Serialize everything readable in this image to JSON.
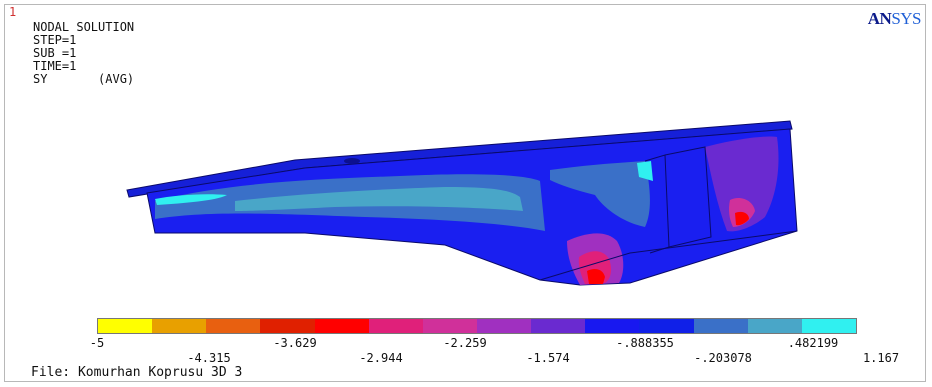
{
  "window_number": "1",
  "title": "NODAL SOLUTION",
  "info_lines": [
    "STEP=1",
    "SUB =1",
    "TIME=1",
    "SY       (AVG)"
  ],
  "logo": {
    "an": "AN",
    "sys": "SYS"
  },
  "legend": {
    "colors": [
      "#ffff00",
      "#e8a000",
      "#e86010",
      "#e02000",
      "#ff0000",
      "#e0207a",
      "#d0309a",
      "#a030c0",
      "#6a2ad0",
      "#1818f0",
      "#1020e8",
      "#3a70c8",
      "#49a6c8",
      "#30f0f0"
    ],
    "labels_top": [
      "-5",
      "-3.629",
      "-2.259",
      "-.888355",
      ".482199"
    ],
    "labels_bottom": [
      "-4.315",
      "-2.944",
      "-1.574",
      "-.203078",
      "1.167"
    ]
  },
  "file_line": "File: Komurhan Koprusu 3D 3"
}
